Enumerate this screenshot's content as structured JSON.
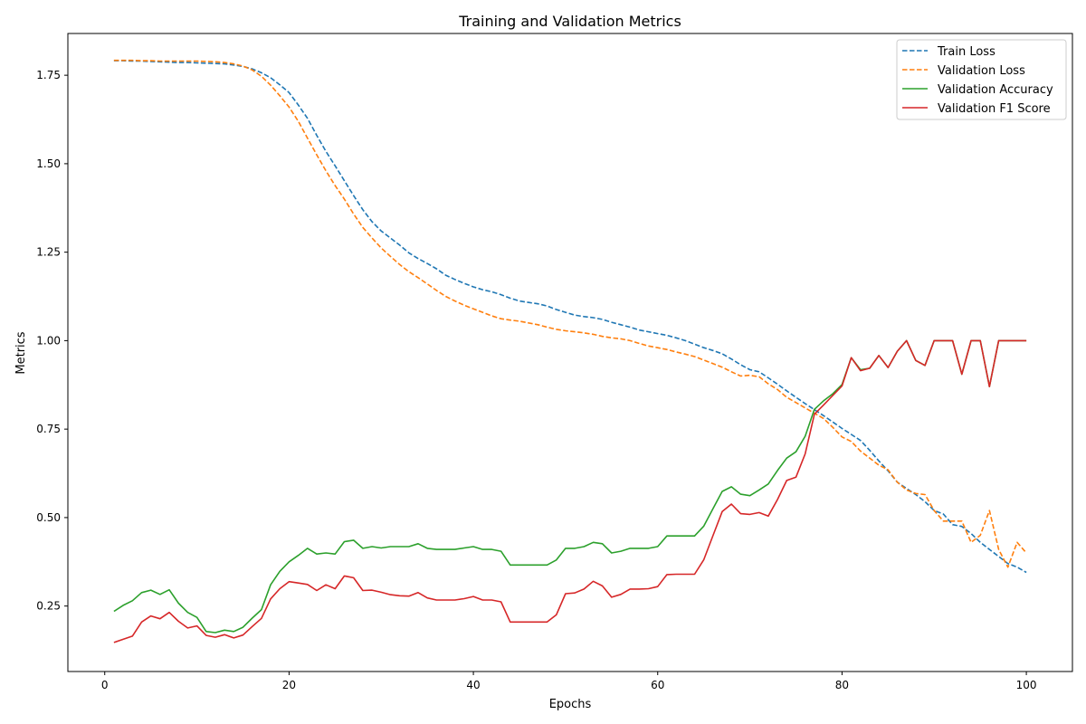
{
  "chart_data": {
    "type": "line",
    "title": "Training and Validation Metrics",
    "xlabel": "Epochs",
    "ylabel": "Metrics",
    "xlim": [
      -4,
      105
    ],
    "ylim": [
      0.065,
      1.868
    ],
    "xticks": [
      0,
      20,
      40,
      60,
      80,
      100
    ],
    "xtick_labels": [
      "0",
      "20",
      "40",
      "60",
      "80",
      "100"
    ],
    "yticks": [
      0.25,
      0.5,
      0.75,
      1.0,
      1.25,
      1.5,
      1.75
    ],
    "ytick_labels": [
      "0.25",
      "0.50",
      "0.75",
      "1.00",
      "1.25",
      "1.50",
      "1.75"
    ],
    "grid": false,
    "legend_position": "top-right",
    "x": [
      1,
      2,
      3,
      4,
      5,
      6,
      7,
      8,
      9,
      10,
      11,
      12,
      13,
      14,
      15,
      16,
      17,
      18,
      19,
      20,
      21,
      22,
      23,
      24,
      25,
      26,
      27,
      28,
      29,
      30,
      31,
      32,
      33,
      34,
      35,
      36,
      37,
      38,
      39,
      40,
      41,
      42,
      43,
      44,
      45,
      46,
      47,
      48,
      49,
      50,
      51,
      52,
      53,
      54,
      55,
      56,
      57,
      58,
      59,
      60,
      61,
      62,
      63,
      64,
      65,
      66,
      67,
      68,
      69,
      70,
      71,
      72,
      73,
      74,
      75,
      76,
      77,
      78,
      79,
      80,
      81,
      82,
      83,
      84,
      85,
      86,
      87,
      88,
      89,
      90,
      91,
      92,
      93,
      94,
      95,
      96,
      97,
      98,
      99,
      100
    ],
    "series": [
      {
        "name": "Train Loss",
        "color": "#1f77b4",
        "dash": "dashed",
        "values": [
          1.791,
          1.791,
          1.79,
          1.79,
          1.789,
          1.788,
          1.787,
          1.786,
          1.786,
          1.785,
          1.784,
          1.783,
          1.782,
          1.779,
          1.775,
          1.768,
          1.757,
          1.743,
          1.723,
          1.701,
          1.666,
          1.628,
          1.58,
          1.535,
          1.494,
          1.452,
          1.41,
          1.37,
          1.336,
          1.31,
          1.29,
          1.27,
          1.248,
          1.232,
          1.218,
          1.203,
          1.185,
          1.173,
          1.162,
          1.152,
          1.144,
          1.138,
          1.13,
          1.12,
          1.112,
          1.108,
          1.104,
          1.098,
          1.088,
          1.08,
          1.072,
          1.068,
          1.065,
          1.06,
          1.052,
          1.045,
          1.038,
          1.03,
          1.025,
          1.02,
          1.015,
          1.008,
          1.0,
          0.99,
          0.98,
          0.972,
          0.963,
          0.948,
          0.932,
          0.918,
          0.912,
          0.895,
          0.877,
          0.858,
          0.84,
          0.822,
          0.805,
          0.788,
          0.77,
          0.752,
          0.735,
          0.718,
          0.69,
          0.66,
          0.632,
          0.6,
          0.582,
          0.565,
          0.545,
          0.52,
          0.51,
          0.48,
          0.475,
          0.455,
          0.43,
          0.41,
          0.39,
          0.37,
          0.36,
          0.345
        ]
      },
      {
        "name": "Validation Loss",
        "color": "#ff7f0e",
        "dash": "dashed",
        "values": [
          1.792,
          1.792,
          1.792,
          1.791,
          1.791,
          1.79,
          1.79,
          1.79,
          1.79,
          1.79,
          1.789,
          1.788,
          1.786,
          1.782,
          1.776,
          1.765,
          1.747,
          1.722,
          1.692,
          1.66,
          1.62,
          1.572,
          1.525,
          1.48,
          1.438,
          1.4,
          1.358,
          1.32,
          1.29,
          1.262,
          1.238,
          1.215,
          1.195,
          1.178,
          1.16,
          1.142,
          1.125,
          1.112,
          1.1,
          1.09,
          1.08,
          1.07,
          1.062,
          1.058,
          1.055,
          1.05,
          1.045,
          1.038,
          1.032,
          1.028,
          1.025,
          1.022,
          1.018,
          1.012,
          1.008,
          1.005,
          1.0,
          0.992,
          0.985,
          0.98,
          0.975,
          0.968,
          0.962,
          0.955,
          0.945,
          0.935,
          0.925,
          0.912,
          0.9,
          0.902,
          0.898,
          0.878,
          0.862,
          0.84,
          0.825,
          0.81,
          0.795,
          0.78,
          0.755,
          0.728,
          0.715,
          0.688,
          0.668,
          0.648,
          0.635,
          0.6,
          0.578,
          0.568,
          0.565,
          0.52,
          0.49,
          0.49,
          0.49,
          0.43,
          0.45,
          0.52,
          0.41,
          0.36,
          0.43,
          0.4
        ]
      },
      {
        "name": "Validation Accuracy",
        "color": "#2ca02c",
        "dash": "solid",
        "values": [
          0.235,
          0.252,
          0.265,
          0.288,
          0.295,
          0.283,
          0.296,
          0.258,
          0.232,
          0.218,
          0.178,
          0.175,
          0.182,
          0.178,
          0.19,
          0.216,
          0.24,
          0.31,
          0.348,
          0.375,
          0.393,
          0.413,
          0.397,
          0.4,
          0.397,
          0.432,
          0.436,
          0.413,
          0.418,
          0.414,
          0.418,
          0.418,
          0.418,
          0.426,
          0.413,
          0.41,
          0.41,
          0.41,
          0.414,
          0.418,
          0.41,
          0.41,
          0.405,
          0.366,
          0.366,
          0.366,
          0.366,
          0.366,
          0.38,
          0.413,
          0.413,
          0.418,
          0.43,
          0.426,
          0.4,
          0.405,
          0.413,
          0.413,
          0.413,
          0.418,
          0.448,
          0.448,
          0.448,
          0.448,
          0.476,
          0.525,
          0.574,
          0.587,
          0.566,
          0.562,
          0.578,
          0.595,
          0.633,
          0.668,
          0.686,
          0.73,
          0.806,
          0.83,
          0.85,
          0.876,
          0.952,
          0.918,
          0.922,
          0.958,
          0.924,
          0.97,
          1.0,
          0.944,
          0.93,
          1.0,
          1.0,
          1.0,
          0.905,
          1.0,
          1.0,
          0.87,
          1.0,
          1.0,
          1.0,
          1.0
        ]
      },
      {
        "name": "Validation F1 Score",
        "color": "#d62728",
        "dash": "solid",
        "values": [
          0.147,
          0.156,
          0.165,
          0.205,
          0.222,
          0.214,
          0.232,
          0.207,
          0.188,
          0.194,
          0.167,
          0.162,
          0.169,
          0.16,
          0.168,
          0.192,
          0.215,
          0.27,
          0.299,
          0.319,
          0.315,
          0.311,
          0.294,
          0.31,
          0.299,
          0.335,
          0.33,
          0.294,
          0.295,
          0.289,
          0.282,
          0.279,
          0.278,
          0.288,
          0.273,
          0.267,
          0.267,
          0.267,
          0.271,
          0.277,
          0.267,
          0.267,
          0.262,
          0.205,
          0.205,
          0.205,
          0.205,
          0.205,
          0.225,
          0.285,
          0.287,
          0.298,
          0.32,
          0.307,
          0.275,
          0.283,
          0.298,
          0.298,
          0.299,
          0.305,
          0.339,
          0.34,
          0.34,
          0.34,
          0.381,
          0.449,
          0.517,
          0.538,
          0.511,
          0.509,
          0.514,
          0.504,
          0.551,
          0.605,
          0.614,
          0.68,
          0.792,
          0.818,
          0.845,
          0.872,
          0.952,
          0.915,
          0.922,
          0.958,
          0.924,
          0.97,
          1.0,
          0.944,
          0.93,
          1.0,
          1.0,
          1.0,
          0.905,
          1.0,
          1.0,
          0.87,
          1.0,
          1.0,
          1.0,
          1.0
        ]
      }
    ]
  }
}
